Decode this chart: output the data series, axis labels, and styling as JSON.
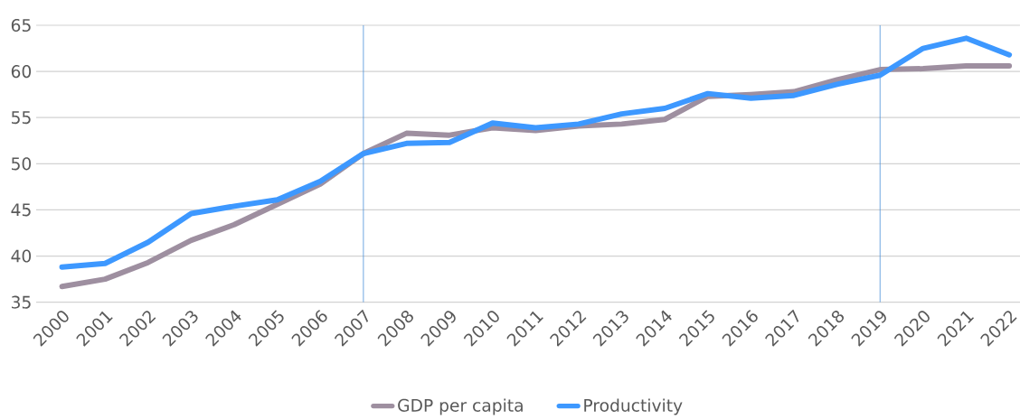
{
  "chart_data": {
    "type": "line",
    "categories": [
      "2000",
      "2001",
      "2002",
      "2003",
      "2004",
      "2005",
      "2006",
      "2007",
      "2008",
      "2009",
      "2010",
      "2011",
      "2012",
      "2013",
      "2014",
      "2015",
      "2016",
      "2017",
      "2018",
      "2019",
      "2020",
      "2021",
      "2022"
    ],
    "series": [
      {
        "name": "GDP per capita",
        "color": "#9e8fa0",
        "values": [
          36.7,
          37.5,
          39.3,
          41.7,
          43.4,
          45.6,
          47.8,
          51.1,
          53.3,
          53.1,
          53.9,
          53.6,
          54.1,
          54.3,
          54.8,
          57.3,
          57.5,
          57.8,
          59.1,
          60.2,
          60.3,
          60.6,
          60.6
        ]
      },
      {
        "name": "Productivity",
        "color": "#3d98ff",
        "values": [
          38.8,
          39.2,
          41.5,
          44.6,
          45.4,
          46.1,
          48.1,
          51.1,
          52.2,
          52.3,
          54.4,
          53.9,
          54.3,
          55.4,
          56.0,
          57.6,
          57.1,
          57.4,
          58.6,
          59.6,
          62.5,
          63.6,
          61.8
        ]
      }
    ],
    "ylim": [
      35,
      65
    ],
    "yticks": [
      35,
      40,
      45,
      50,
      55,
      60,
      65
    ],
    "grid": "y",
    "legend": "bottom",
    "line_style": "solid",
    "ref_lines": [
      {
        "axis": "x",
        "value": "2007",
        "color": "#4a90d9"
      },
      {
        "axis": "x",
        "value": "2019",
        "color": "#4a90d9"
      }
    ]
  }
}
